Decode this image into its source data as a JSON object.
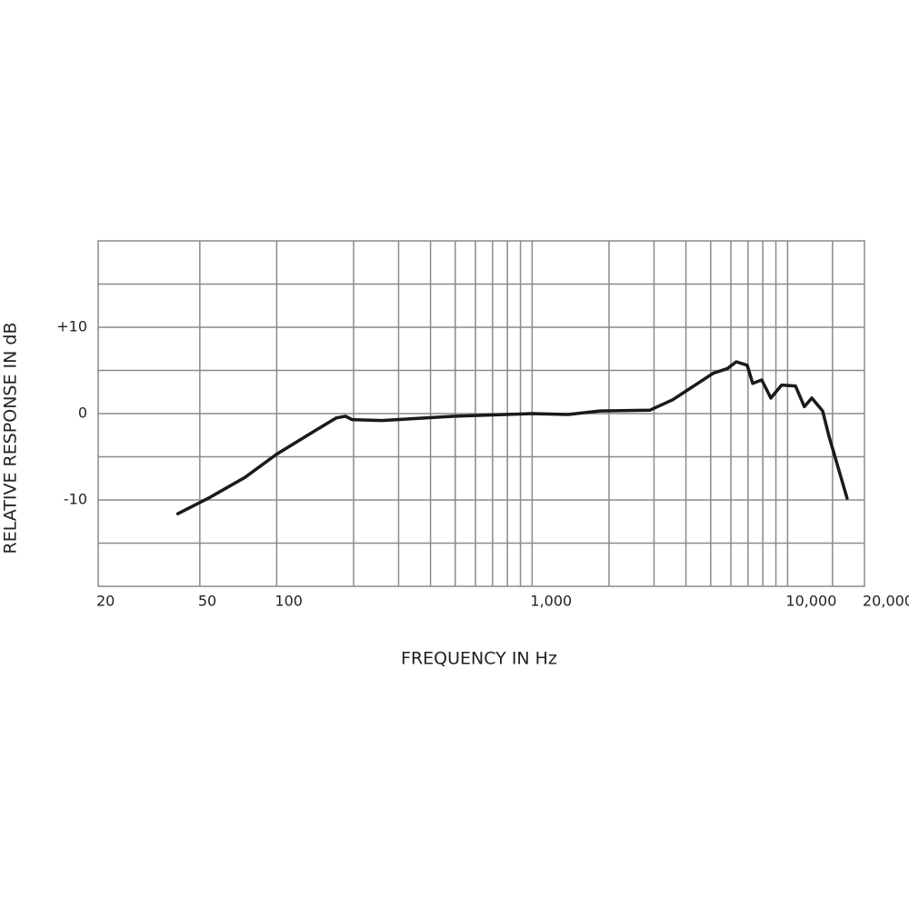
{
  "chart_data": {
    "type": "line",
    "x_label": "FREQUENCY IN Hz",
    "y_label": "RELATIVE RESPONSE IN dB",
    "x_log": true,
    "xlim": [
      20,
      20000
    ],
    "xticks": [
      20,
      50,
      100,
      {
        "value": 1000,
        "label": "1,000"
      },
      {
        "value": 10000,
        "label": "10,000"
      },
      {
        "value": 20000,
        "label": "20,000"
      }
    ],
    "x_grid_lines": [
      50,
      100,
      200,
      300,
      400,
      500,
      600,
      700,
      800,
      900,
      1000,
      2000,
      3000,
      4000,
      5000,
      6000,
      7000,
      8000,
      9000,
      10000,
      15000
    ],
    "ylim": [
      -20,
      20
    ],
    "yticks": [
      {
        "value": 10,
        "label": "+10"
      },
      0,
      -10
    ],
    "y_grid_lines": [
      -15,
      -10,
      -5,
      0,
      5,
      10,
      15
    ],
    "grid": true,
    "series": [
      {
        "color": "#1a1a1a",
        "x": [
          41,
          54,
          75,
          100,
          134,
          171,
          186,
          197,
          258,
          497,
          1000,
          1384,
          1841,
          2892,
          3550,
          5130,
          5805,
          6300,
          6950,
          7300,
          7925,
          8600,
          9480,
          10740,
          11640,
          12440,
          13720,
          14520,
          17100
        ],
        "values": [
          -11.6,
          -9.8,
          -7.4,
          -4.7,
          -2.4,
          -0.5,
          -0.3,
          -0.7,
          -0.8,
          -0.3,
          0,
          -0.1,
          0.3,
          0.4,
          1.6,
          4.7,
          5.2,
          6.0,
          5.6,
          3.5,
          3.9,
          1.8,
          3.3,
          3.2,
          0.8,
          1.8,
          0.3,
          -2.6,
          -9.8
        ]
      }
    ]
  }
}
